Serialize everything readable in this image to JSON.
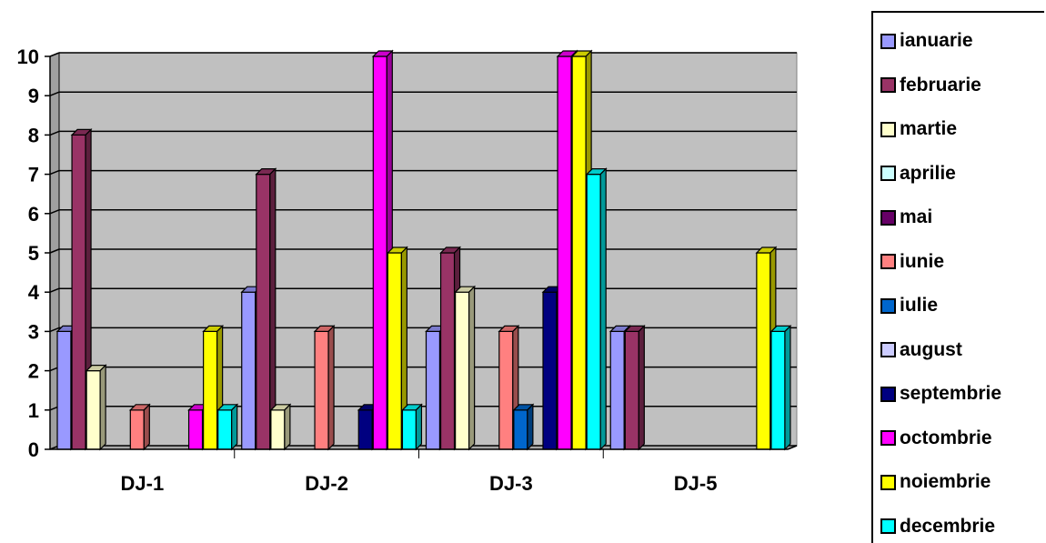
{
  "chart_data": {
    "type": "bar",
    "title": "",
    "xlabel": "",
    "ylabel": "",
    "ylim": [
      0,
      10
    ],
    "yticks": [
      0,
      1,
      2,
      3,
      4,
      5,
      6,
      7,
      8,
      9,
      10
    ],
    "grid": true,
    "legend_position": "right",
    "categories": [
      "DJ-1",
      "DJ-2",
      "DJ-3",
      "DJ-5"
    ],
    "series": [
      {
        "name": "ianuarie",
        "color": "#9999ff",
        "values": [
          3,
          4,
          3,
          3
        ]
      },
      {
        "name": "februarie",
        "color": "#993366",
        "values": [
          8,
          7,
          5,
          3
        ]
      },
      {
        "name": "martie",
        "color": "#ffffcc",
        "values": [
          2,
          1,
          4,
          0
        ]
      },
      {
        "name": "aprilie",
        "color": "#ccffff",
        "values": [
          0,
          0,
          0,
          0
        ]
      },
      {
        "name": "mai",
        "color": "#660066",
        "values": [
          0,
          0,
          0,
          0
        ]
      },
      {
        "name": "iunie",
        "color": "#ff8080",
        "values": [
          1,
          3,
          3,
          0
        ]
      },
      {
        "name": "iulie",
        "color": "#0066cc",
        "values": [
          0,
          0,
          1,
          0
        ]
      },
      {
        "name": "august",
        "color": "#ccccff",
        "values": [
          0,
          0,
          0,
          0
        ]
      },
      {
        "name": "septembrie",
        "color": "#000080",
        "values": [
          0,
          1,
          4,
          0
        ]
      },
      {
        "name": "octombrie",
        "color": "#ff00ff",
        "values": [
          1,
          10,
          10,
          0
        ]
      },
      {
        "name": "noiembrie",
        "color": "#ffff00",
        "values": [
          3,
          5,
          10,
          5
        ]
      },
      {
        "name": "decembrie",
        "color": "#00ffff",
        "values": [
          1,
          1,
          7,
          3
        ]
      }
    ]
  }
}
